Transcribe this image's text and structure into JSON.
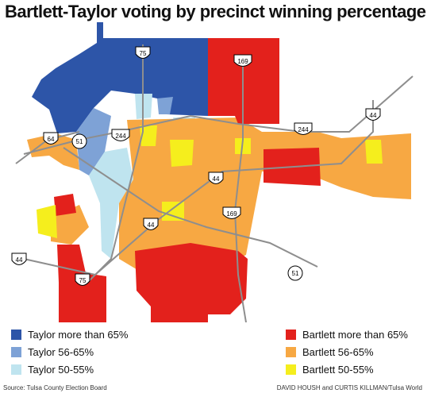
{
  "title": "Bartlett-Taylor voting by precinct winning percentage",
  "colors": {
    "taylor_65": "#2d55a8",
    "taylor_56": "#7ea2d6",
    "taylor_50": "#bfe4ef",
    "bartlett_65": "#e3211c",
    "bartlett_56": "#f7a843",
    "bartlett_50": "#f5ee1d",
    "road": "#8e8e8e",
    "shield_bg": "#ffffff"
  },
  "shields": {
    "i44_ne": "44",
    "i244_ne": "244",
    "us75_n": "75",
    "us169_n": "169",
    "us64": "64",
    "us51_w": "51",
    "i244_w": "244",
    "i44_center": "44",
    "i44_sw": "44",
    "us169_s": "169",
    "us51_e": "51",
    "i44_far_sw": "44",
    "us75_s": "75"
  },
  "legend": {
    "taylor_65": "Taylor more than 65%",
    "taylor_56": "Taylor 56-65%",
    "taylor_50": "Taylor 50-55%",
    "bartlett_65": "Bartlett more than 65%",
    "bartlett_56": "Bartlett 56-65%",
    "bartlett_50": "Bartlett 50-55%"
  },
  "source": "Source: Tulsa County Election Board",
  "credit": "DAVID HOUSH and CURTIS KILLMAN/Tulsa World"
}
